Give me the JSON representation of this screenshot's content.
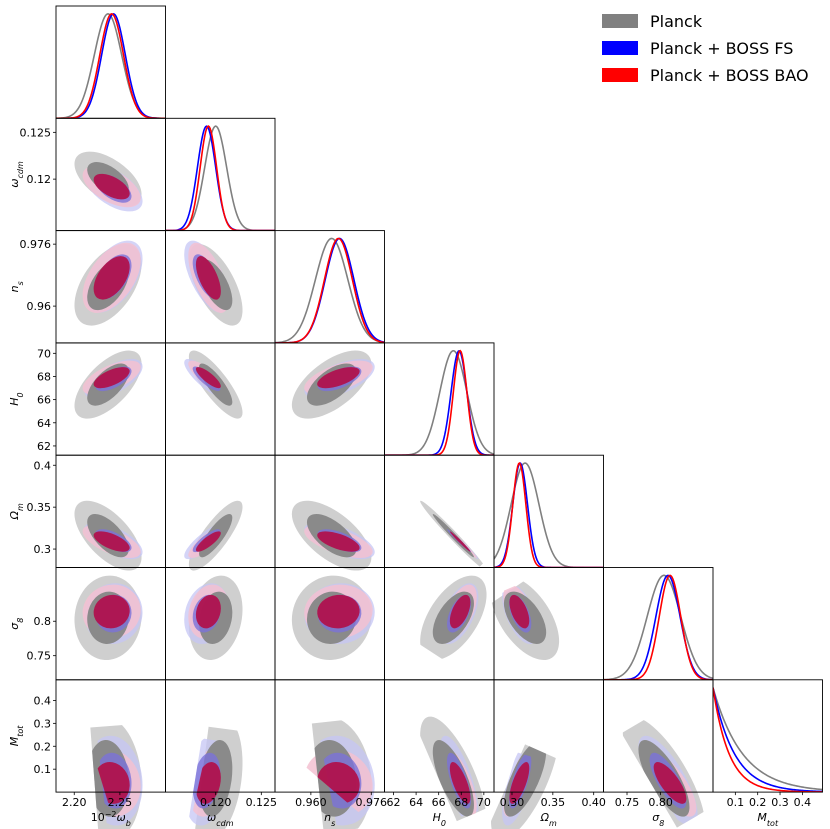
{
  "chart_data": {
    "type": "corner",
    "parameters": [
      {
        "key": "omega_b",
        "label": "10⁻²ω_b",
        "label_main": "10",
        "label_sup": "−2",
        "label_sym": "ω",
        "label_sub": "b",
        "range": [
          2.18,
          2.3
        ],
        "ticks": [
          2.2,
          2.25
        ],
        "tick_labels": [
          "2.20",
          "2.25"
        ]
      },
      {
        "key": "omega_cdm",
        "label": "ω_cdm",
        "label_sym": "ω",
        "label_sub": "cdm",
        "range": [
          0.1145,
          0.1265
        ],
        "ticks": [
          0.12,
          0.125
        ],
        "tick_labels": [
          "0.120",
          "0.125"
        ]
      },
      {
        "key": "n_s",
        "label": "n_s",
        "label_sym": "n",
        "label_sub": "s",
        "range": [
          0.9505,
          0.9795
        ],
        "ticks": [
          0.96,
          0.976
        ],
        "tick_labels": [
          "0.960",
          "0.976"
        ]
      },
      {
        "key": "H0",
        "label": "H_0",
        "label_sym": "H",
        "label_sub": "0",
        "range": [
          61.2,
          70.9
        ],
        "ticks": [
          62,
          64,
          66,
          68,
          70
        ],
        "tick_labels": [
          "62",
          "64",
          "66",
          "68",
          "70"
        ]
      },
      {
        "key": "Omega_m",
        "label": "Ω_m",
        "label_sym": "Ω",
        "label_sub": "m",
        "range": [
          0.278,
          0.412
        ],
        "ticks": [
          0.3,
          0.35,
          0.4
        ],
        "tick_labels": [
          "0.30",
          "0.35",
          "0.40"
        ]
      },
      {
        "key": "sigma8",
        "label": "σ_8",
        "label_sym": "σ",
        "label_sub": "8",
        "range": [
          0.715,
          0.878
        ],
        "ticks": [
          0.75,
          0.8
        ],
        "tick_labels": [
          "0.75",
          "0.80"
        ]
      },
      {
        "key": "Mtot",
        "label": "M_tot",
        "label_sym": "M",
        "label_sub": "tot",
        "range": [
          0.0,
          0.49
        ],
        "ticks": [
          0.1,
          0.2,
          0.3,
          0.4
        ],
        "tick_labels": [
          "0.1",
          "0.2",
          "0.3",
          "0.4"
        ]
      }
    ],
    "y_tick_labels": {
      "omega_cdm": [
        "0.12",
        "0.125"
      ],
      "n_s": [
        "0.96",
        "0.976"
      ],
      "H0": [
        "62",
        "64",
        "66",
        "68",
        "70"
      ],
      "Omega_m": [
        "0.3",
        "0.35",
        "0.4"
      ],
      "sigma8": [
        "0.75",
        "0.8"
      ],
      "Mtot": [
        "0.1",
        "0.2",
        "0.3",
        "0.4"
      ]
    },
    "y_ticks": {
      "omega_cdm": [
        0.12,
        0.125
      ],
      "n_s": [
        0.96,
        0.976
      ],
      "H0": [
        62,
        64,
        66,
        68,
        70
      ],
      "Omega_m": [
        0.3,
        0.35,
        0.4
      ],
      "sigma8": [
        0.75,
        0.8
      ],
      "Mtot": [
        0.1,
        0.2,
        0.3,
        0.4
      ]
    },
    "series": [
      {
        "name": "Planck",
        "color": "#808080",
        "mean": {
          "omega_b": 2.237,
          "omega_cdm": 0.12,
          "n_s": 0.9655,
          "H0": 67.3,
          "Omega_m": 0.316,
          "sigma8": 0.805,
          "Mtot": 0.06
        },
        "sd": {
          "omega_b": 0.015,
          "omega_cdm": 0.0012,
          "n_s": 0.0043,
          "H0": 1.2,
          "Omega_m": 0.017,
          "sigma8": 0.025,
          "Mtot": 0.11
        }
      },
      {
        "name": "Planck + BOSS FS",
        "color": "#0000ff",
        "mean": {
          "omega_b": 2.243,
          "omega_cdm": 0.119,
          "n_s": 0.9676,
          "H0": 67.8,
          "Omega_m": 0.31,
          "sigma8": 0.811,
          "Mtot": 0.05
        },
        "sd": {
          "omega_b": 0.013,
          "omega_cdm": 0.001,
          "n_s": 0.0038,
          "H0": 0.7,
          "Omega_m": 0.009,
          "sigma8": 0.018,
          "Mtot": 0.08
        }
      },
      {
        "name": "Planck + BOSS BAO",
        "color": "#ff0000",
        "mean": {
          "omega_b": 2.241,
          "omega_cdm": 0.1192,
          "n_s": 0.9673,
          "H0": 67.9,
          "Omega_m": 0.309,
          "sigma8": 0.814,
          "Mtot": 0.04
        },
        "sd": {
          "omega_b": 0.013,
          "omega_cdm": 0.0009,
          "n_s": 0.0037,
          "H0": 0.6,
          "Omega_m": 0.008,
          "sigma8": 0.016,
          "Mtot": 0.06
        }
      }
    ],
    "contour_fill": {
      "outer": "#c8c8c8",
      "inner": "#b0124d",
      "outer_pink": "#f1c3d2",
      "blue_outer": "#c8c8f5"
    },
    "legend": {
      "position": "top-right",
      "entries": [
        "Planck",
        "Planck + BOSS FS",
        "Planck + BOSS BAO"
      ]
    }
  }
}
